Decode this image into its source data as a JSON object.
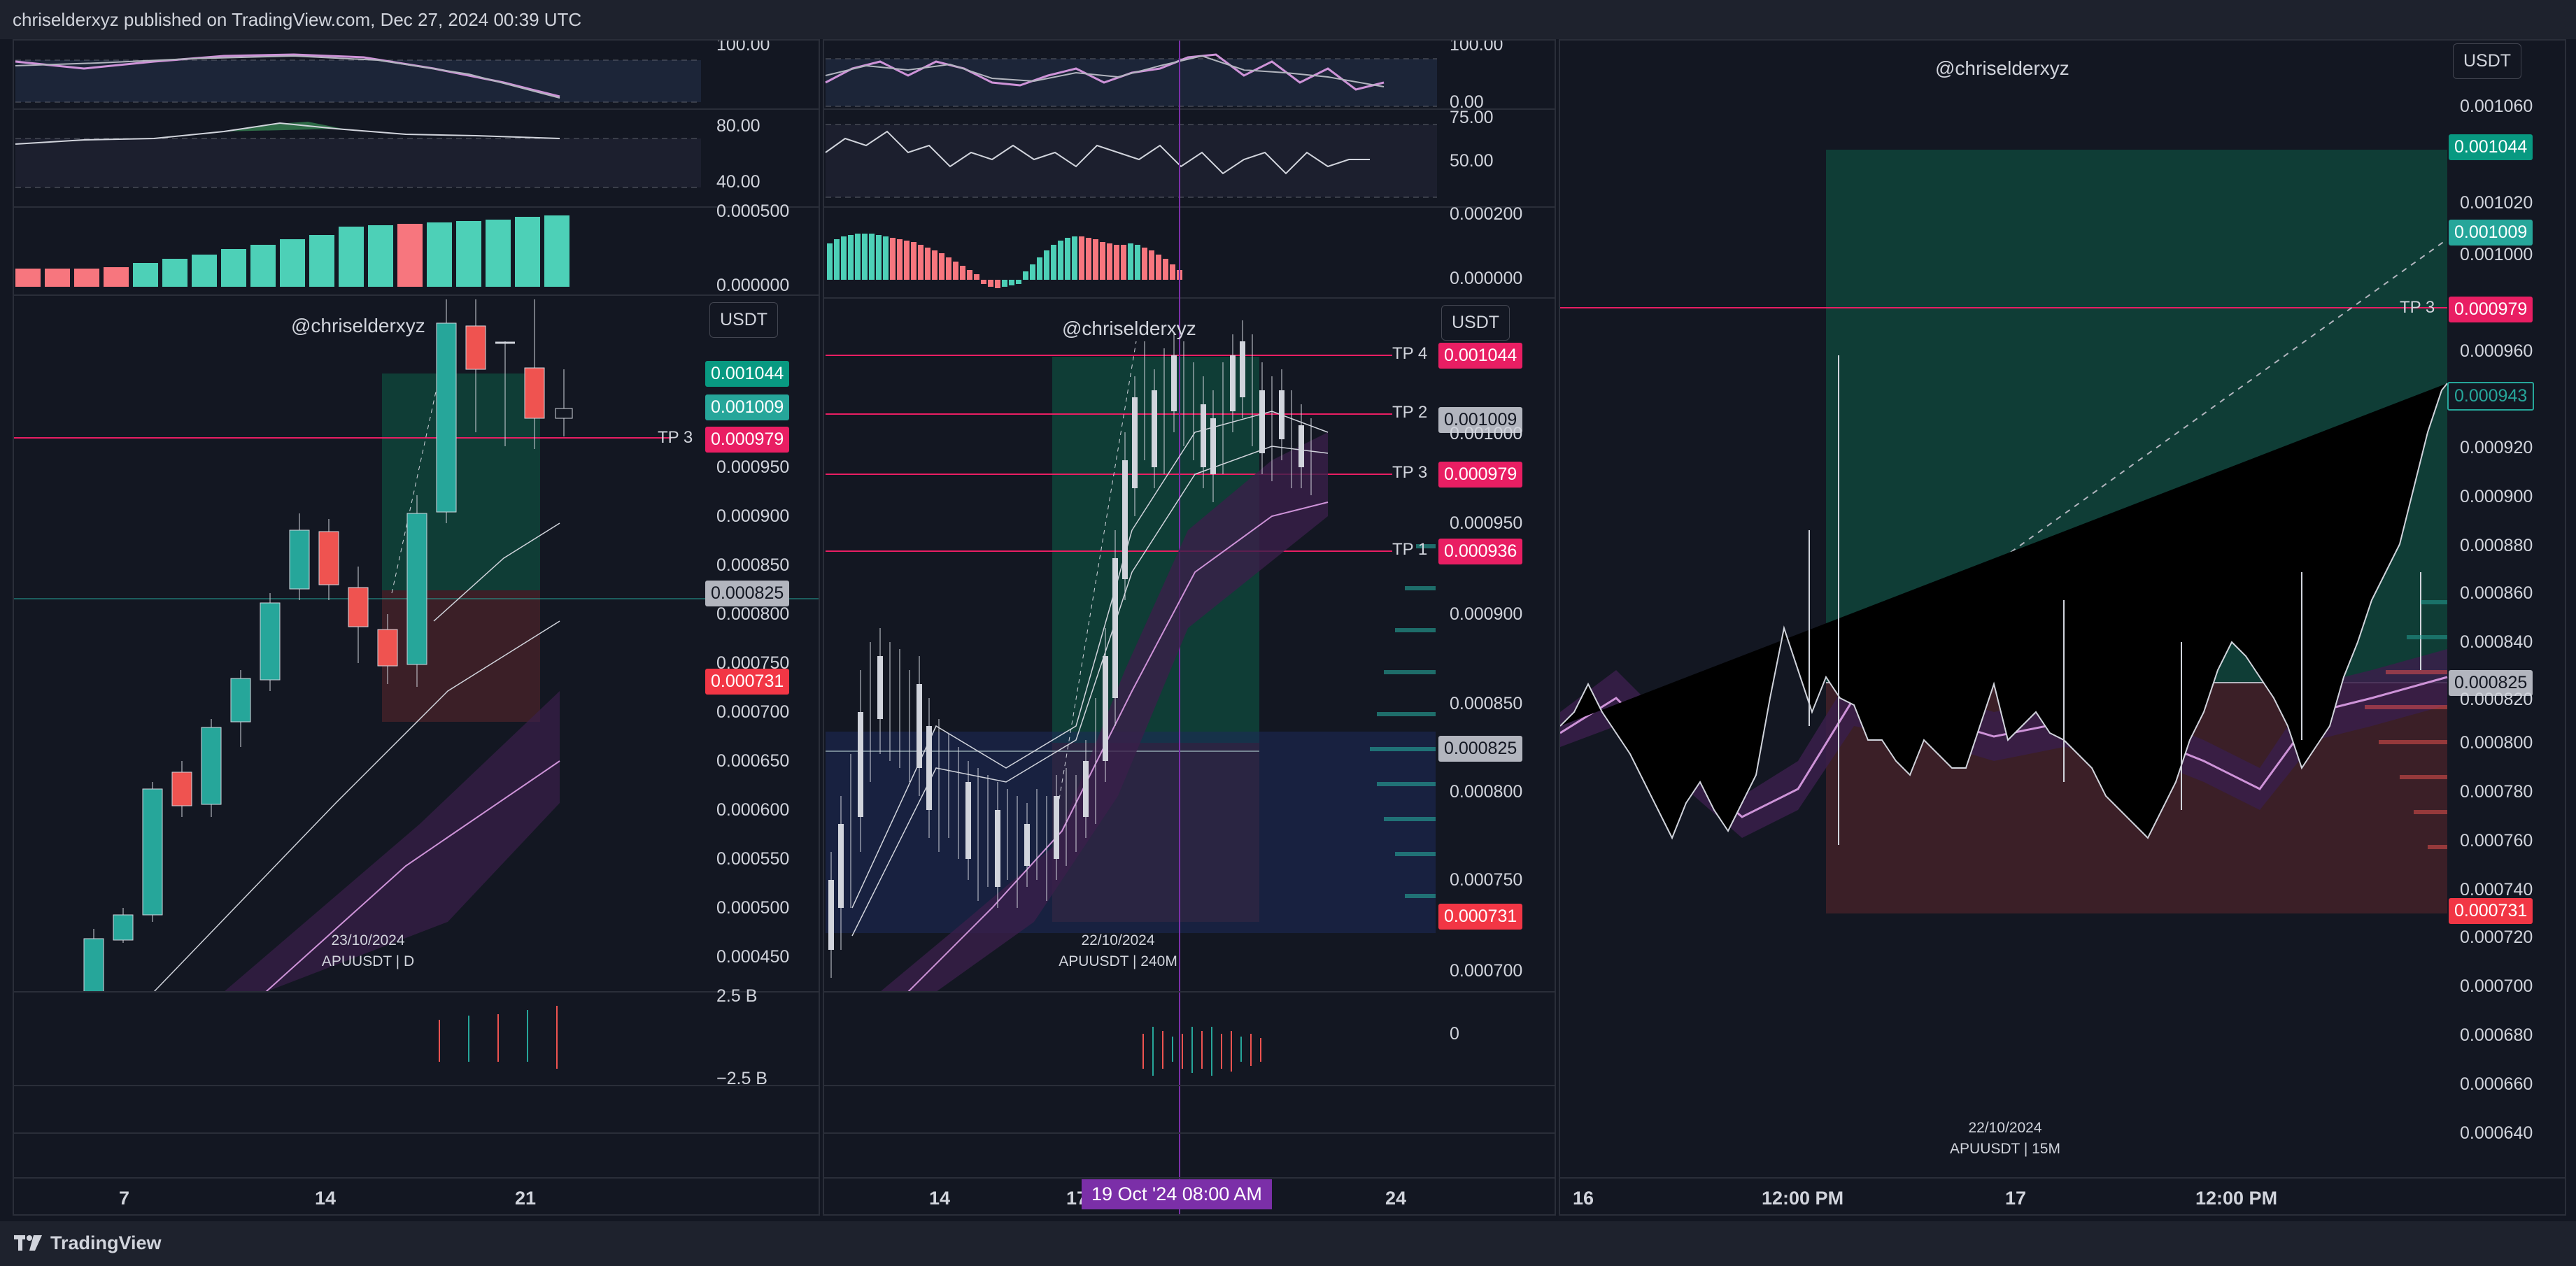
{
  "header": {
    "publisher_line": "chriselderxyz published on TradingView.com, Dec 27, 2024 00:39 UTC"
  },
  "footer": {
    "brand": "TradingView"
  },
  "panes": {
    "daily": {
      "watermark": "@chriselderxyz",
      "currency": "USDT",
      "caption_date": "23/10/2024",
      "caption_symbol": "APUUSDT | D",
      "rsi_levels": [
        "100.00"
      ],
      "osc_levels": [
        "80.00",
        "40.00"
      ],
      "hist_levels": [
        "0.000500",
        "0.000000"
      ],
      "price_axis": [
        "0.000950",
        "0.000900",
        "0.000850",
        "0.000800",
        "0.000750",
        "0.000700",
        "0.000650",
        "0.000600",
        "0.000550",
        "0.000500",
        "0.000450"
      ],
      "tags": {
        "tp4": "0.001044",
        "tp2": "0.001009",
        "tp3": "0.000979",
        "entry": "0.000825",
        "stop": "0.000731"
      },
      "tp3_label": "TP 3",
      "volume_levels": [
        "2.5 B",
        "−2.5 B"
      ],
      "x_ticks": [
        "7",
        "14",
        "21"
      ]
    },
    "h4": {
      "watermark": "@chriselderxyz",
      "currency": "USDT",
      "caption_date": "22/10/2024",
      "caption_symbol": "APUUSDT | 240M",
      "rsi_levels": [
        "100.00",
        "0.00"
      ],
      "osc_levels": [
        "75.00",
        "50.00"
      ],
      "hist_levels": [
        "0.000200",
        "0.000000"
      ],
      "price_axis": [
        "0.001000",
        "0.000950",
        "0.000900",
        "0.000850",
        "0.000800",
        "0.000750",
        "0.000700"
      ],
      "tags": {
        "tp4": "0.001044",
        "tp2": "0.001009",
        "tp3": "0.000979",
        "tp1": "0.000936",
        "entry": "0.000825",
        "stop": "0.000731"
      },
      "tp_labels": {
        "tp4": "TP 4",
        "tp2": "TP 2",
        "tp3": "TP 3",
        "tp1": "TP 1"
      },
      "volume_level": "0",
      "x_ticks": [
        "14",
        "17",
        "24"
      ],
      "crosshair_label": "19 Oct '24   08:00 AM"
    },
    "m15": {
      "watermark": "@chriselderxyz",
      "currency": "USDT",
      "caption_date": "22/10/2024",
      "caption_symbol": "APUUSDT | 15M",
      "price_axis": [
        "0.001060",
        "0.001020",
        "0.001000",
        "0.000960",
        "0.000920",
        "0.000900",
        "0.000880",
        "0.000860",
        "0.000840",
        "0.000820",
        "0.000800",
        "0.000780",
        "0.000760",
        "0.000740",
        "0.000720",
        "0.000700",
        "0.000680",
        "0.000660",
        "0.000640"
      ],
      "tags": {
        "tp4": "0.001044",
        "tp2": "0.001009",
        "tp3": "0.000979",
        "last": "0.000943",
        "entry": "0.000825",
        "stop": "0.000731"
      },
      "tp3_label": "TP 3",
      "x_ticks": [
        "16",
        "12:00 PM",
        "17",
        "12:00 PM"
      ]
    }
  },
  "colors": {
    "up": "#26a69a",
    "down": "#ef5350",
    "tp_line": "#e91e63",
    "profit": "#0f3d36",
    "loss": "#3b1f27",
    "ma": "#ce93d8"
  }
}
